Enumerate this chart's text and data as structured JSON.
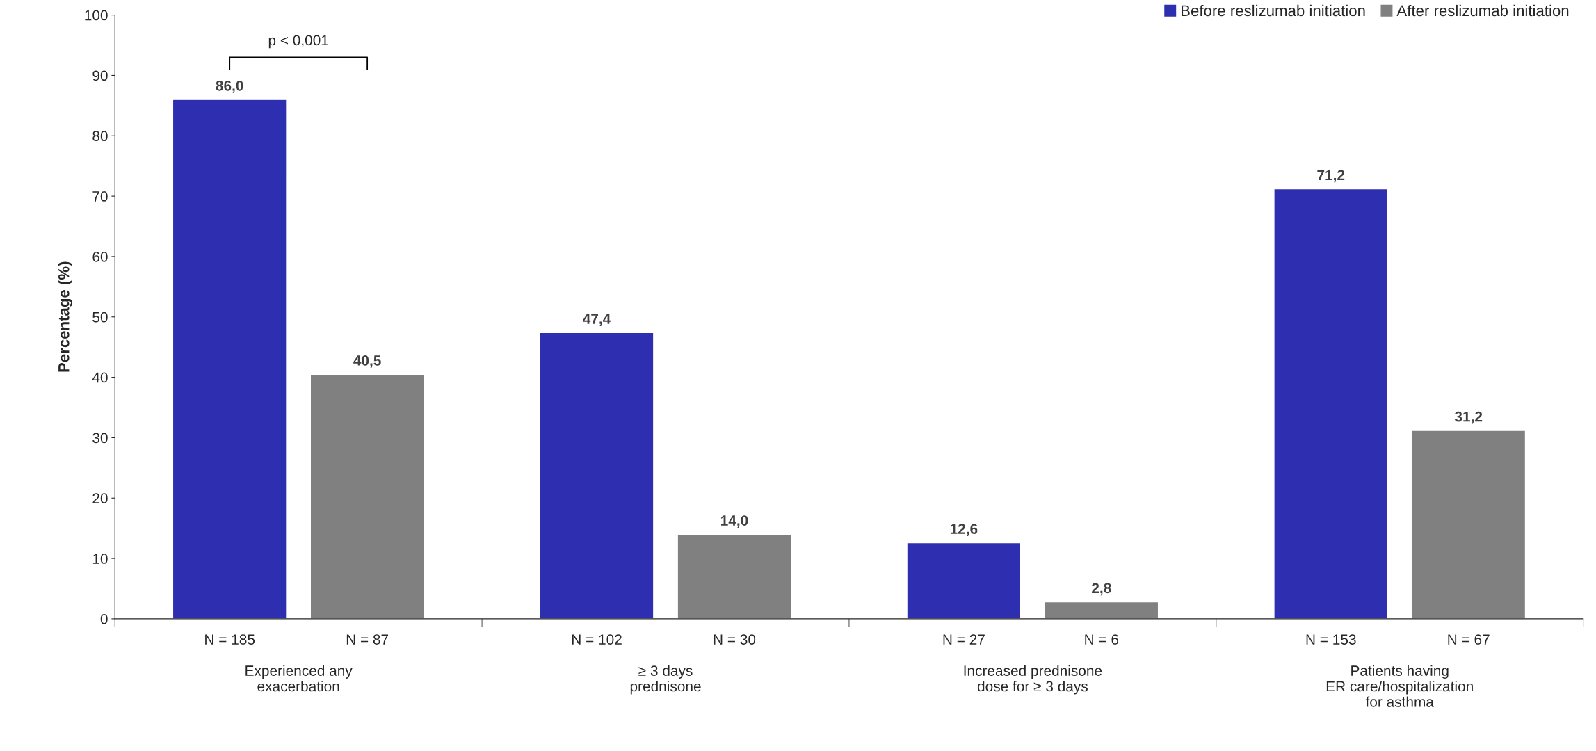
{
  "chart_data": {
    "type": "bar",
    "ylabel": "Percentage (%)",
    "categories": [
      "Experienced any\nexacerbation",
      "≥ 3 days\nprednisone",
      "Increased prednisone\ndose for ≥ 3 days",
      "Patients having\nER care/hospitalization\nfor asthma"
    ],
    "series": [
      {
        "name": "Before reslizumab initiation",
        "color": "#2e2eb1",
        "values": [
          86.0,
          47.4,
          12.6,
          71.2
        ],
        "value_labels": [
          "86,0",
          "47,4",
          "12,6",
          "71,2"
        ]
      },
      {
        "name": "After reslizumab initiation",
        "color": "#808080",
        "values": [
          40.5,
          14.0,
          2.8,
          31.2
        ],
        "value_labels": [
          "40,5",
          "14,0",
          "2,8",
          "31,2"
        ]
      }
    ],
    "ylim": [
      0,
      100
    ],
    "yticks": [
      0,
      10,
      20,
      30,
      40,
      50,
      60,
      70,
      80,
      90,
      100
    ],
    "grid": false,
    "legend": "top right",
    "annotations": [
      "p < 0,001",
      "N = 185",
      "N = 87",
      "N = 102",
      "N = 30",
      "N = 27",
      "N = 6",
      "N = 153",
      "N = 67"
    ]
  }
}
